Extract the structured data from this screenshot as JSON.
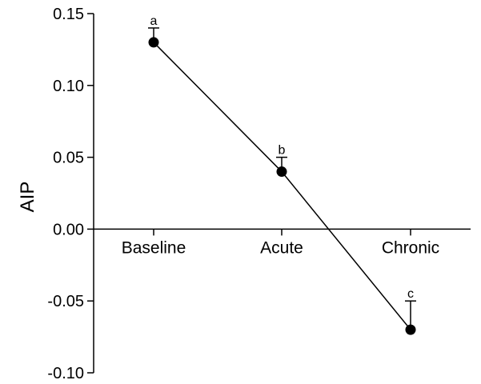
{
  "chart_data": {
    "type": "line",
    "title": "",
    "xlabel": "",
    "ylabel": "AIP",
    "ylim": [
      -0.1,
      0.15
    ],
    "yticks": [
      0.15,
      0.1,
      0.05,
      0.0,
      -0.05,
      -0.1
    ],
    "ytick_labels": [
      "0.15",
      "0.10",
      "0.05",
      "0.00",
      "-0.05",
      "-0.10"
    ],
    "categories": [
      "Baseline",
      "Acute",
      "Chronic"
    ],
    "series": [
      {
        "values": [
          0.13,
          0.04,
          -0.07
        ],
        "error": [
          0.01,
          0.01,
          0.02
        ],
        "error_direction": [
          "up",
          "up",
          "up"
        ],
        "significance": [
          "a",
          "b",
          "c"
        ]
      }
    ],
    "grid": false,
    "legend": "none",
    "colors": {
      "line": "#000000",
      "marker": "#000000",
      "axis": "#000000"
    }
  }
}
